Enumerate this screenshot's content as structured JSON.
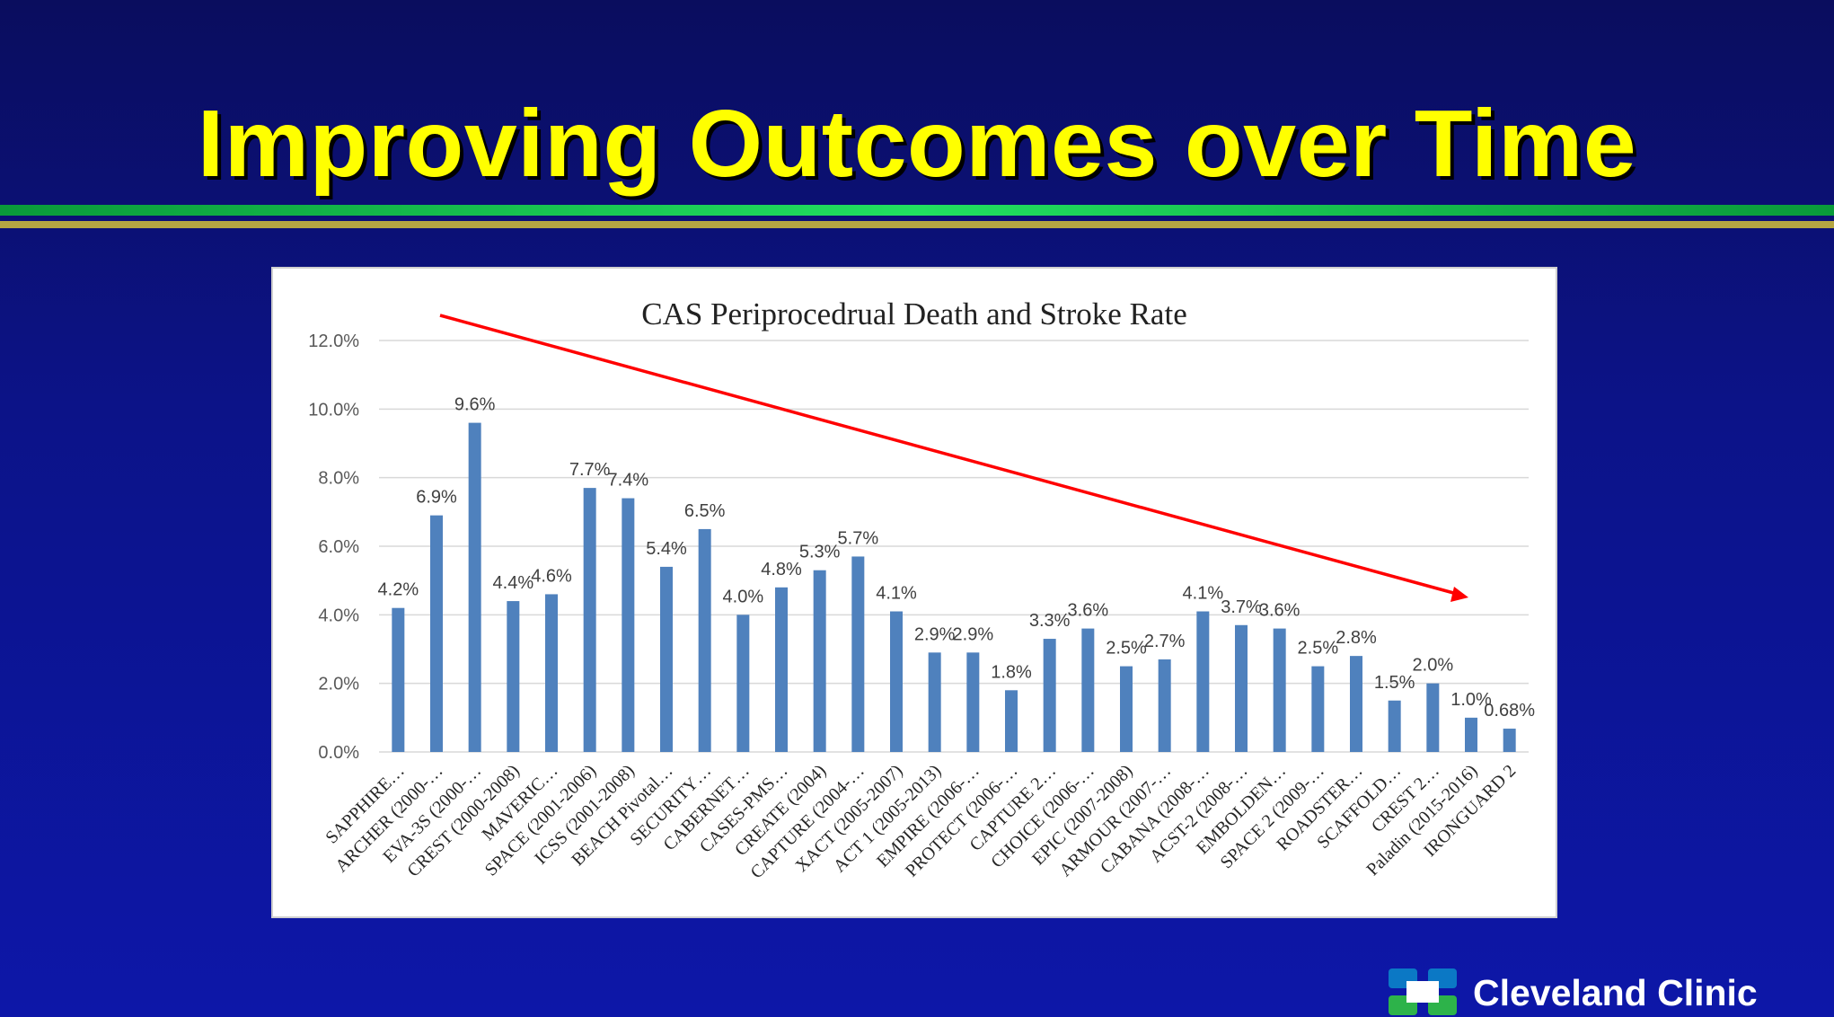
{
  "slide": {
    "title": "Improving Outcomes over Time"
  },
  "logo": {
    "text": "Cleveland Clinic",
    "colors": {
      "blue": "#0b78c5",
      "green": "#2db34a"
    }
  },
  "colors": {
    "background": "#0c1388",
    "title": "#ffff00",
    "bar": "#4f81bd",
    "trend_arrow": "#ff0000",
    "rule_green": "#22e060",
    "rule_gold": "#b5a642"
  },
  "chart_data": {
    "type": "bar",
    "title": "CAS Periprocedrual Death and Stroke Rate",
    "xlabel": "",
    "ylabel": "",
    "ylim": [
      0,
      12
    ],
    "yticks": [
      "0.0%",
      "2.0%",
      "4.0%",
      "6.0%",
      "8.0%",
      "10.0%",
      "12.0%"
    ],
    "ytick_values": [
      0,
      2,
      4,
      6,
      8,
      10,
      12
    ],
    "grid": true,
    "categories": [
      "SAPPHIRE…",
      "ARCHER (2000-…",
      "EVA-3S (2000-…",
      "CREST (2000-2008)",
      "MAVERIC…",
      "SPACE (2001-2006)",
      "ICSS (2001-2008)",
      "BEACH Pivotal…",
      "SECURITY…",
      "CABERNET…",
      "CASES-PMS…",
      "CREATE (2004)",
      "CAPTURE (2004-…",
      "XACT (2005-2007)",
      "ACT 1 (2005-2013)",
      "EMPIRE (2006-…",
      "PROTECT (2006-…",
      "CAPTURE 2…",
      "CHOICE (2006-…",
      "EPIC (2007-2008)",
      "ARMOUR (2007-…",
      "CABANA (2008-…",
      "ACST-2 (2008-…",
      "EMBOLDEN…",
      "SPACE 2 (2009-…",
      "ROADSTER…",
      "SCAFFOLD…",
      "CREST 2…",
      "Paladin (2015-2016)",
      "IRONGUARD 2"
    ],
    "values": [
      4.2,
      6.9,
      9.6,
      4.4,
      4.6,
      7.7,
      7.4,
      5.4,
      6.5,
      4.0,
      4.8,
      5.3,
      5.7,
      4.1,
      2.9,
      2.9,
      1.8,
      3.3,
      3.6,
      2.5,
      2.7,
      4.1,
      3.7,
      3.6,
      2.5,
      2.8,
      1.5,
      2.0,
      1.0,
      0.68
    ],
    "data_labels": [
      "4.2%",
      "6.9%",
      "9.6%",
      "4.4%",
      "4.6%",
      "7.7%",
      "7.4%",
      "5.4%",
      "6.5%",
      "4.0%",
      "4.8%",
      "5.3%",
      "5.7%",
      "4.1%",
      "2.9%",
      "2.9%",
      "1.8%",
      "3.3%",
      "3.6%",
      "2.5%",
      "2.7%",
      "4.1%",
      "3.7%",
      "3.6%",
      "2.5%",
      "2.8%",
      "1.5%",
      "2.0%",
      "1.0%",
      "0.68%"
    ],
    "trend_arrow": {
      "direction": "decreasing",
      "color": "#ff0000"
    }
  }
}
